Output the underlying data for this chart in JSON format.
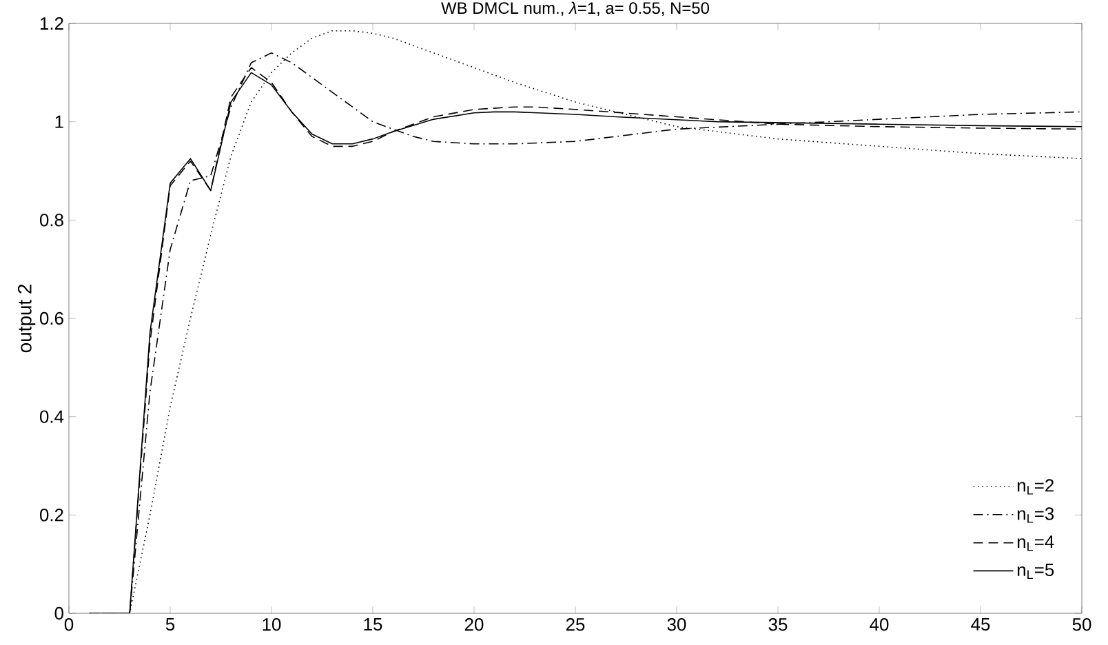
{
  "chart_data": {
    "type": "line",
    "title": "WB DMCL num., *λ*=1, a= 0.55, N=50",
    "ylabel": "output 2",
    "xlim": [
      0,
      50
    ],
    "ylim": [
      0,
      1.2
    ],
    "xticks": [
      0,
      5,
      10,
      15,
      20,
      25,
      30,
      35,
      40,
      45,
      50
    ],
    "yticks": [
      0,
      0.2,
      0.4,
      0.6,
      0.8,
      1,
      1.2
    ],
    "legend": "bottom right",
    "grid": false,
    "series": [
      {
        "name": "n$_{L}$=2",
        "color": "#000000",
        "line_style": "dotted",
        "x": [
          1,
          2,
          3,
          4,
          5,
          6,
          7,
          8,
          9,
          10,
          11,
          12,
          13,
          14,
          15,
          16,
          18,
          20,
          22,
          25,
          28,
          30,
          35,
          40,
          45,
          50
        ],
        "values": [
          0,
          0,
          0,
          0.2,
          0.42,
          0.6,
          0.77,
          0.93,
          1.04,
          1.1,
          1.14,
          1.17,
          1.185,
          1.185,
          1.18,
          1.17,
          1.14,
          1.11,
          1.08,
          1.04,
          1.01,
          0.99,
          0.965,
          0.95,
          0.935,
          0.925
        ]
      },
      {
        "name": "n$_{L}$=3",
        "color": "#000000",
        "line_style": "dashdot",
        "x": [
          1,
          2,
          3,
          4,
          5,
          6,
          7,
          8,
          9,
          10,
          11,
          12,
          13,
          14,
          15,
          16,
          17,
          18,
          20,
          22,
          25,
          28,
          30,
          35,
          40,
          45,
          50
        ],
        "values": [
          0,
          0,
          0,
          0.45,
          0.74,
          0.88,
          0.89,
          1.03,
          1.12,
          1.14,
          1.12,
          1.09,
          1.06,
          1.03,
          1.0,
          0.985,
          0.97,
          0.96,
          0.955,
          0.955,
          0.96,
          0.975,
          0.985,
          0.995,
          1.005,
          1.015,
          1.02
        ]
      },
      {
        "name": "n$_{L}$=4",
        "color": "#000000",
        "line_style": "dashed",
        "x": [
          1,
          2,
          3,
          4,
          5,
          6,
          7,
          8,
          9,
          10,
          11,
          12,
          13,
          14,
          15,
          16,
          18,
          20,
          22,
          23,
          25,
          30,
          35,
          40,
          45,
          50
        ],
        "values": [
          0,
          0,
          0,
          0.55,
          0.87,
          0.92,
          0.86,
          1.05,
          1.11,
          1.08,
          1.02,
          0.97,
          0.95,
          0.95,
          0.96,
          0.98,
          1.01,
          1.025,
          1.03,
          1.03,
          1.025,
          1.01,
          0.995,
          0.99,
          0.987,
          0.985
        ]
      },
      {
        "name": "n$_{L}$=5",
        "color": "#000000",
        "line_style": "solid",
        "x": [
          1,
          2,
          3,
          4,
          5,
          6,
          7,
          8,
          9,
          10,
          11,
          12,
          13,
          14,
          15,
          16,
          18,
          20,
          21,
          22,
          25,
          27,
          32,
          40,
          45,
          50
        ],
        "values": [
          0,
          0,
          0,
          0.57,
          0.875,
          0.925,
          0.86,
          1.04,
          1.1,
          1.075,
          1.02,
          0.975,
          0.955,
          0.955,
          0.965,
          0.98,
          1.005,
          1.018,
          1.02,
          1.02,
          1.015,
          1.01,
          1.0,
          0.995,
          0.992,
          0.99
        ]
      }
    ]
  }
}
